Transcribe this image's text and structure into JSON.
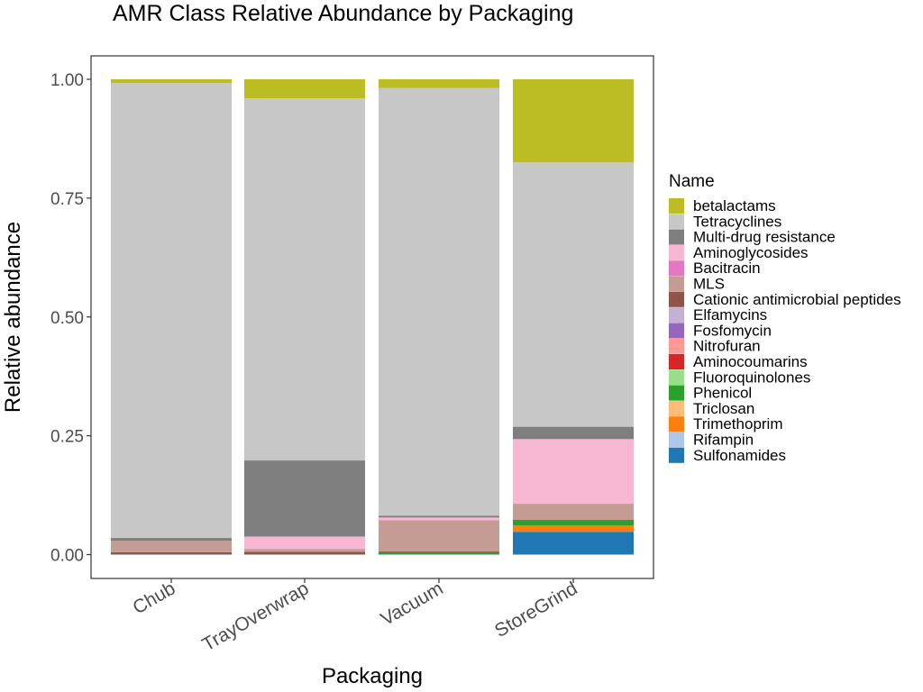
{
  "chart_data": {
    "type": "bar",
    "stacked": true,
    "title": "AMR Class Relative Abundance by Packaging",
    "xlabel": "Packaging",
    "ylabel": "Relative abundance",
    "ylim": [
      0,
      1
    ],
    "yticks": [
      "0.00",
      "0.25",
      "0.50",
      "0.75",
      "1.00"
    ],
    "ytick_values": [
      0,
      0.25,
      0.5,
      0.75,
      1.0
    ],
    "grid": false,
    "legend_title": "Name",
    "legend_position": "right",
    "categories": [
      "Chub",
      "TrayOverwrap",
      "Vacuum",
      "StoreGrind"
    ],
    "series": [
      {
        "name": "betalactams",
        "color": "#BCBD22",
        "values": [
          0.008,
          0.04,
          0.018,
          0.175
        ]
      },
      {
        "name": "Tetracyclines",
        "color": "#C7C7C7",
        "values": [
          0.957,
          0.762,
          0.9,
          0.556
        ]
      },
      {
        "name": "Multi-drug resistance",
        "color": "#7F7F7F",
        "values": [
          0.006,
          0.16,
          0.004,
          0.026
        ]
      },
      {
        "name": "Aminoglycosides",
        "color": "#F7B6D2",
        "values": [
          0.0,
          0.026,
          0.006,
          0.136
        ]
      },
      {
        "name": "Bacitracin",
        "color": "#E377C2",
        "values": [
          0.0,
          0.0,
          0.0,
          0.0
        ]
      },
      {
        "name": "MLS",
        "color": "#C49C94",
        "values": [
          0.024,
          0.006,
          0.065,
          0.034
        ]
      },
      {
        "name": "Cationic antimicrobial peptides",
        "color": "#8C564B",
        "values": [
          0.005,
          0.006,
          0.002,
          0.0
        ]
      },
      {
        "name": "Elfamycins",
        "color": "#C5B0D5",
        "values": [
          0.0,
          0.0,
          0.0,
          0.0
        ]
      },
      {
        "name": "Fosfomycin",
        "color": "#9467BD",
        "values": [
          0.0,
          0.0,
          0.0,
          0.0
        ]
      },
      {
        "name": "Nitrofuran",
        "color": "#FF9896",
        "values": [
          0.0,
          0.0,
          0.0,
          0.0
        ]
      },
      {
        "name": "Aminocoumarins",
        "color": "#D62728",
        "values": [
          0.0,
          0.0,
          0.0,
          0.0
        ]
      },
      {
        "name": "Fluoroquinolones",
        "color": "#98DF8A",
        "values": [
          0.0,
          0.0,
          0.0,
          0.0
        ]
      },
      {
        "name": "Phenicol",
        "color": "#2CA02C",
        "values": [
          0.0,
          0.0,
          0.005,
          0.012
        ]
      },
      {
        "name": "Triclosan",
        "color": "#FFBB78",
        "values": [
          0.0,
          0.0,
          0.0,
          0.0
        ]
      },
      {
        "name": "Trimethoprim",
        "color": "#FF7F0E",
        "values": [
          0.0,
          0.0,
          0.0,
          0.013
        ]
      },
      {
        "name": "Rifampin",
        "color": "#AEC7E8",
        "values": [
          0.0,
          0.0,
          0.0,
          0.0
        ]
      },
      {
        "name": "Sulfonamides",
        "color": "#1F77B4",
        "values": [
          0.0,
          0.0,
          0.0,
          0.048
        ]
      }
    ]
  }
}
